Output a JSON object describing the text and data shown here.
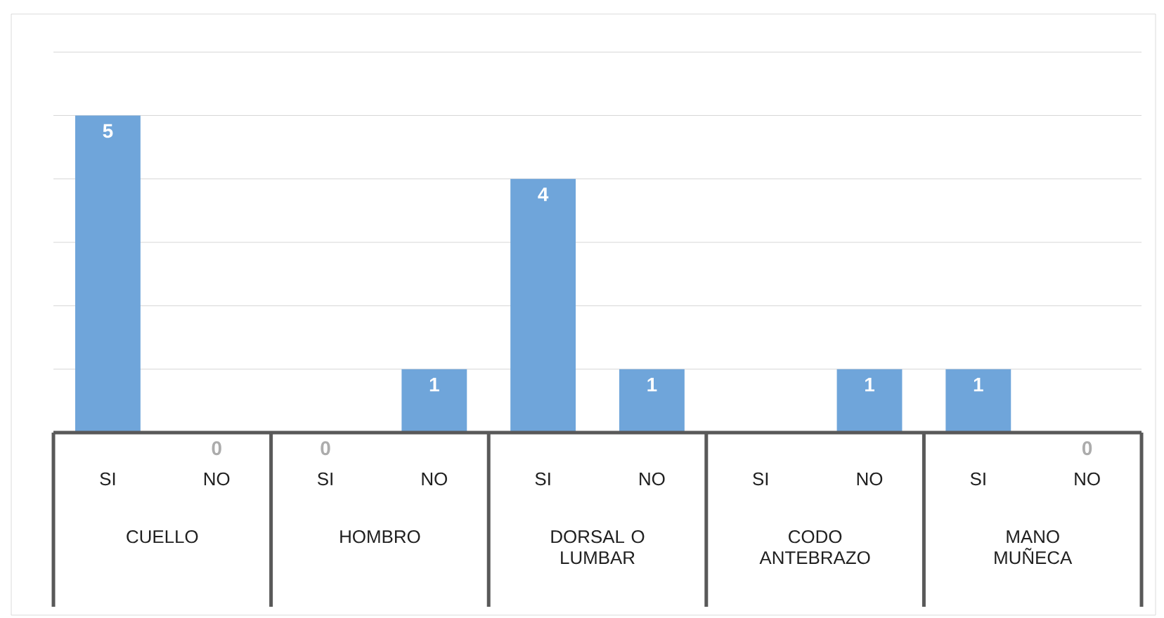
{
  "chart_data": {
    "type": "bar",
    "categories": [
      "SI",
      "NO",
      "SI",
      "NO",
      "SI",
      "NO",
      "SI",
      "NO",
      "SI",
      "NO"
    ],
    "values": [
      5,
      0,
      0,
      1,
      4,
      1,
      null,
      1,
      1,
      0
    ],
    "value_labels": [
      "5",
      "0",
      "0",
      "1",
      "4",
      "1",
      null,
      "1",
      "1",
      "0"
    ],
    "color": "#6fa5da",
    "annotations": [
      "CUELLO",
      "HOMBRO",
      "DORSAL O LUMBAR",
      "CODO ANTEBRAZO",
      "MANO MUÑECA"
    ],
    "ylim": [
      0,
      6.6
    ],
    "yticks": [
      {
        "value": 1,
        "label": null
      },
      {
        "value": 2,
        "label": null
      },
      {
        "value": 3,
        "label": null
      },
      {
        "value": 4,
        "label": null
      },
      {
        "value": 5,
        "label": null
      },
      {
        "value": 6,
        "label": null
      }
    ],
    "tick_labels": "x",
    "grid": "y"
  }
}
